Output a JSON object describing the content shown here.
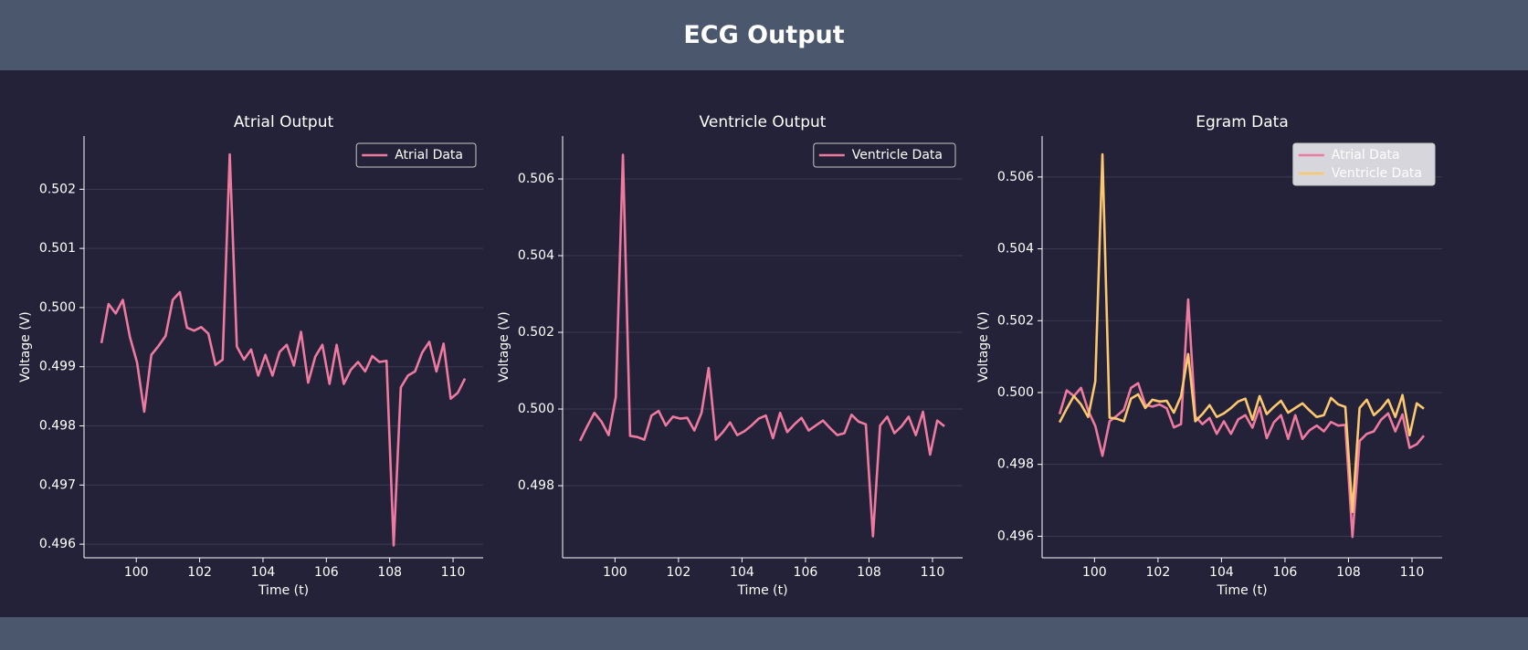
{
  "header": {
    "title": "ECG Output"
  },
  "chart_data": [
    {
      "type": "line",
      "title": "Atrial Output",
      "xlabel": "Time (t)",
      "ylabel": "Voltage (V)",
      "x": [
        98.9,
        99.125,
        99.35,
        99.575,
        99.8,
        100.025,
        100.25,
        100.475,
        100.7,
        100.925,
        101.15,
        101.375,
        101.6,
        101.825,
        102.05,
        102.275,
        102.5,
        102.725,
        102.95,
        103.175,
        103.4,
        103.625,
        103.85,
        104.075,
        104.3,
        104.525,
        104.75,
        104.975,
        105.2,
        105.425,
        105.65,
        105.875,
        106.1,
        106.325,
        106.55,
        106.775,
        107,
        107.225,
        107.45,
        107.675,
        107.9,
        108.125,
        108.35,
        108.575,
        108.8,
        109.025,
        109.25,
        109.475,
        109.7,
        109.925,
        110.15,
        110.375
      ],
      "series": [
        {
          "name": "Atrial Data",
          "color": "#ef7aa0",
          "values": [
            0.4994,
            0.50006,
            0.4999,
            0.50013,
            0.4995,
            0.49907,
            0.49824,
            0.4992,
            0.49935,
            0.49952,
            0.50013,
            0.50026,
            0.49966,
            0.49961,
            0.49967,
            0.49956,
            0.49903,
            0.49912,
            0.50259,
            0.49934,
            0.49912,
            0.49929,
            0.49885,
            0.4992,
            0.49885,
            0.49925,
            0.49937,
            0.49902,
            0.49959,
            0.49873,
            0.49917,
            0.49937,
            0.49871,
            0.49937,
            0.49871,
            0.49895,
            0.49908,
            0.49892,
            0.49918,
            0.49908,
            0.4991,
            0.49598,
            0.49865,
            0.49885,
            0.49892,
            0.49924,
            0.49942,
            0.49892,
            0.49939,
            0.49846,
            0.49856,
            0.4988
          ]
        }
      ],
      "xlim": [
        98.35,
        110.95
      ],
      "xticks": [
        100,
        102,
        104,
        106,
        108,
        110
      ],
      "ylim": [
        0.49577,
        0.5029
      ],
      "yticks": [
        0.496,
        0.497,
        0.498,
        0.499,
        {
          "value": 0.5,
          "label": "0.500"
        },
        0.501,
        0.502
      ],
      "grid": true,
      "legend": "upper right",
      "legend_facecolor": "#232238"
    },
    {
      "type": "line",
      "title": "Ventricle Output",
      "xlabel": "Time (t)",
      "ylabel": "Voltage (V)",
      "x": [
        98.9,
        99.125,
        99.35,
        99.575,
        99.8,
        100.025,
        100.25,
        100.475,
        100.7,
        100.925,
        101.15,
        101.375,
        101.6,
        101.825,
        102.05,
        102.275,
        102.5,
        102.725,
        102.95,
        103.175,
        103.4,
        103.625,
        103.85,
        104.075,
        104.3,
        104.525,
        104.75,
        104.975,
        105.2,
        105.425,
        105.65,
        105.875,
        106.1,
        106.325,
        106.55,
        106.775,
        107,
        107.225,
        107.45,
        107.675,
        107.9,
        108.125,
        108.35,
        108.575,
        108.8,
        109.025,
        109.25,
        109.475,
        109.7,
        109.925,
        110.15,
        110.375
      ],
      "series": [
        {
          "name": "Ventricle Data",
          "color": "#ef7aa0",
          "values": [
            0.49917,
            0.49955,
            0.4999,
            0.49967,
            0.49932,
            0.50031,
            0.50663,
            0.4993,
            0.49927,
            0.4992,
            0.49983,
            0.49995,
            0.49957,
            0.4998,
            0.49975,
            0.49977,
            0.49944,
            0.4999,
            0.50107,
            0.4992,
            0.4994,
            0.49965,
            0.49932,
            0.49942,
            0.49957,
            0.49975,
            0.49983,
            0.49924,
            0.4999,
            0.4994,
            0.4996,
            0.49977,
            0.49944,
            0.49957,
            0.4997,
            0.4995,
            0.49932,
            0.49937,
            0.49985,
            0.49967,
            0.4996,
            0.49668,
            0.49957,
            0.4998,
            0.49937,
            0.49955,
            0.4998,
            0.49932,
            0.49993,
            0.49881,
            0.4997,
            0.49955
          ]
        }
      ],
      "xlim": [
        98.35,
        110.95
      ],
      "xticks": [
        100,
        102,
        104,
        106,
        108,
        110
      ],
      "ylim": [
        0.49612,
        0.50712
      ],
      "yticks": [
        0.498,
        {
          "value": 0.5,
          "label": "0.500"
        },
        0.502,
        0.504,
        0.506
      ],
      "grid": true,
      "legend": "upper right",
      "legend_facecolor": "#232238"
    },
    {
      "type": "line",
      "title": "Egram Data",
      "xlabel": "Time (t)",
      "ylabel": "Voltage (V)",
      "x": [
        98.9,
        99.125,
        99.35,
        99.575,
        99.8,
        100.025,
        100.25,
        100.475,
        100.7,
        100.925,
        101.15,
        101.375,
        101.6,
        101.825,
        102.05,
        102.275,
        102.5,
        102.725,
        102.95,
        103.175,
        103.4,
        103.625,
        103.85,
        104.075,
        104.3,
        104.525,
        104.75,
        104.975,
        105.2,
        105.425,
        105.65,
        105.875,
        106.1,
        106.325,
        106.55,
        106.775,
        107,
        107.225,
        107.45,
        107.675,
        107.9,
        108.125,
        108.35,
        108.575,
        108.8,
        109.025,
        109.25,
        109.475,
        109.7,
        109.925,
        110.15,
        110.375
      ],
      "series": [
        {
          "name": "Atrial Data",
          "color": "#ef7aa0",
          "values": [
            0.4994,
            0.50006,
            0.4999,
            0.50013,
            0.4995,
            0.49907,
            0.49824,
            0.4992,
            0.49935,
            0.49952,
            0.50013,
            0.50026,
            0.49966,
            0.49961,
            0.49967,
            0.49956,
            0.49903,
            0.49912,
            0.50259,
            0.49934,
            0.49912,
            0.49929,
            0.49885,
            0.4992,
            0.49885,
            0.49925,
            0.49937,
            0.49902,
            0.49959,
            0.49873,
            0.49917,
            0.49937,
            0.49871,
            0.49937,
            0.49871,
            0.49895,
            0.49908,
            0.49892,
            0.49918,
            0.49908,
            0.4991,
            0.49598,
            0.49865,
            0.49885,
            0.49892,
            0.49924,
            0.49942,
            0.49892,
            0.49939,
            0.49846,
            0.49856,
            0.4988
          ]
        },
        {
          "name": "Ventricle Data",
          "color": "#fbc76f",
          "values": [
            0.49917,
            0.49955,
            0.4999,
            0.49967,
            0.49932,
            0.50031,
            0.50663,
            0.4993,
            0.49927,
            0.4992,
            0.49983,
            0.49995,
            0.49957,
            0.4998,
            0.49975,
            0.49977,
            0.49944,
            0.4999,
            0.50107,
            0.4992,
            0.4994,
            0.49965,
            0.49932,
            0.49942,
            0.49957,
            0.49975,
            0.49983,
            0.49924,
            0.4999,
            0.4994,
            0.4996,
            0.49977,
            0.49944,
            0.49957,
            0.4997,
            0.4995,
            0.49932,
            0.49937,
            0.49985,
            0.49967,
            0.4996,
            0.49668,
            0.49957,
            0.4998,
            0.49937,
            0.49955,
            0.4998,
            0.49932,
            0.49993,
            0.49881,
            0.4997,
            0.49955
          ]
        }
      ],
      "xlim": [
        98.35,
        110.95
      ],
      "xticks": [
        100,
        102,
        104,
        106,
        108,
        110
      ],
      "ylim": [
        0.4954,
        0.50714
      ],
      "yticks": [
        0.496,
        0.498,
        {
          "value": 0.5,
          "label": "0.500"
        },
        0.502,
        0.504,
        0.506
      ],
      "grid": true,
      "legend": "upper right",
      "legend_facecolor": "#d6d6dc"
    }
  ]
}
